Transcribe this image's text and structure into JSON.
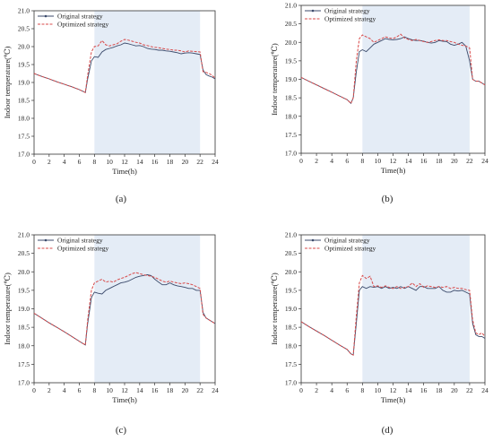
{
  "chart_data": [
    {
      "type": "line",
      "panel_label": "(a)",
      "xlabel": "Time(h)",
      "ylabel": "Indoor temperature(℃)",
      "xlim": [
        0,
        24
      ],
      "ylim": [
        17.0,
        21.0
      ],
      "x_ticks": [
        "0",
        "2",
        "4",
        "6",
        "8",
        "10",
        "12",
        "14",
        "16",
        "18",
        "20",
        "22",
        "24"
      ],
      "y_ticks": [
        "17.0",
        "17.5",
        "18.0",
        "18.5",
        "19.0",
        "19.5",
        "20.0",
        "20.5",
        "21.0"
      ],
      "shaded_region": [
        8,
        22
      ],
      "legend_position": "top-left",
      "series": [
        {
          "name": "Original strategy",
          "color": "#3b4a6b",
          "x": [
            0,
            1,
            2,
            3,
            4,
            5,
            6,
            6.8,
            7.1,
            7.6,
            8.0,
            8.5,
            9,
            9.5,
            10,
            10.5,
            11,
            11.5,
            12,
            12.5,
            13,
            13.5,
            14,
            14.5,
            15,
            15.5,
            16,
            16.5,
            17,
            17.5,
            18,
            18.5,
            19,
            19.5,
            20,
            20.5,
            21,
            21.5,
            22,
            22.4,
            22.8,
            23.2,
            23.6,
            24
          ],
          "y": [
            19.25,
            19.17,
            19.1,
            19.02,
            18.95,
            18.88,
            18.8,
            18.72,
            19.1,
            19.6,
            19.72,
            19.7,
            19.85,
            19.92,
            19.95,
            19.98,
            20.02,
            20.05,
            20.1,
            20.08,
            20.05,
            20.02,
            20.03,
            20.0,
            19.95,
            19.93,
            19.92,
            19.9,
            19.9,
            19.88,
            19.87,
            19.85,
            19.83,
            19.8,
            19.82,
            19.83,
            19.82,
            19.8,
            19.78,
            19.35,
            19.22,
            19.18,
            19.15,
            19.1
          ]
        },
        {
          "name": "Optimized strategy",
          "color": "#d84a4a",
          "x": [
            0,
            1,
            2,
            3,
            4,
            5,
            6,
            6.8,
            7.1,
            7.6,
            8.0,
            8.5,
            9,
            9.5,
            10,
            10.5,
            11,
            11.5,
            12,
            12.5,
            13,
            13.5,
            14,
            14.5,
            15,
            15.5,
            16,
            16.5,
            17,
            17.5,
            18,
            18.5,
            19,
            19.5,
            20,
            20.5,
            21,
            21.5,
            22,
            22.4,
            22.8,
            23.2,
            23.6,
            24
          ],
          "y": [
            19.25,
            19.17,
            19.1,
            19.02,
            18.95,
            18.88,
            18.8,
            18.72,
            19.2,
            19.85,
            20.0,
            20.02,
            20.17,
            20.05,
            20.02,
            20.05,
            20.08,
            20.15,
            20.2,
            20.18,
            20.15,
            20.12,
            20.1,
            20.05,
            20.03,
            20.0,
            19.98,
            19.97,
            19.95,
            19.93,
            19.92,
            19.9,
            19.9,
            19.88,
            19.85,
            19.88,
            19.87,
            19.86,
            19.85,
            19.3,
            19.28,
            19.25,
            19.2,
            19.12
          ]
        }
      ]
    },
    {
      "type": "line",
      "panel_label": "(b)",
      "xlabel": "Time(h)",
      "ylabel": "Indoor temperature(℃)",
      "xlim": [
        0,
        24
      ],
      "ylim": [
        17.0,
        21.0
      ],
      "x_ticks": [
        "0",
        "2",
        "4",
        "6",
        "8",
        "10",
        "12",
        "14",
        "16",
        "18",
        "20",
        "22",
        "24"
      ],
      "y_ticks": [
        "17.0",
        "17.5",
        "18.0",
        "18.5",
        "19.0",
        "19.5",
        "20.0",
        "20.5",
        "21.0"
      ],
      "shaded_region": [
        8,
        22
      ],
      "legend_position": "top-left",
      "series": [
        {
          "name": "Original strategy",
          "color": "#3b4a6b",
          "x": [
            0,
            1,
            2,
            3,
            4,
            5,
            6,
            6.5,
            6.8,
            7.2,
            7.6,
            8.0,
            8.5,
            9,
            9.5,
            10,
            10.5,
            11,
            11.5,
            12,
            12.5,
            13,
            13.5,
            14,
            14.5,
            15,
            15.5,
            16,
            16.5,
            17,
            17.5,
            18,
            18.5,
            19,
            19.5,
            20,
            20.5,
            21,
            21.5,
            22,
            22.4,
            22.8,
            23.2,
            23.6,
            24
          ],
          "y": [
            19.05,
            18.95,
            18.85,
            18.75,
            18.65,
            18.55,
            18.45,
            18.35,
            18.5,
            19.2,
            19.75,
            19.8,
            19.75,
            19.85,
            19.95,
            20.0,
            20.05,
            20.1,
            20.08,
            20.07,
            20.08,
            20.1,
            20.15,
            20.1,
            20.07,
            20.05,
            20.05,
            20.03,
            20.0,
            19.98,
            20.0,
            20.05,
            20.03,
            20.02,
            19.95,
            19.92,
            19.95,
            20.0,
            19.9,
            19.5,
            19.0,
            18.95,
            18.95,
            18.9,
            18.85
          ]
        },
        {
          "name": "Optimized strategy",
          "color": "#d84a4a",
          "x": [
            0,
            1,
            2,
            3,
            4,
            5,
            6,
            6.5,
            6.8,
            7.2,
            7.6,
            8.0,
            8.5,
            9,
            9.5,
            10,
            10.5,
            11,
            11.5,
            12,
            12.5,
            13,
            13.5,
            14,
            14.5,
            15,
            15.5,
            16,
            16.5,
            17,
            17.5,
            18,
            18.5,
            19,
            19.5,
            20,
            20.5,
            21,
            21.5,
            22,
            22.4,
            22.8,
            23.2,
            23.6,
            24
          ],
          "y": [
            19.05,
            18.95,
            18.85,
            18.75,
            18.65,
            18.55,
            18.45,
            18.35,
            18.5,
            19.5,
            20.1,
            20.2,
            20.15,
            20.1,
            20.0,
            20.05,
            20.1,
            20.15,
            20.12,
            20.1,
            20.15,
            20.22,
            20.12,
            20.08,
            20.05,
            20.08,
            20.05,
            20.02,
            20.0,
            20.02,
            20.05,
            20.07,
            20.05,
            20.05,
            20.02,
            20.0,
            19.95,
            19.92,
            19.9,
            19.85,
            19.0,
            18.95,
            18.95,
            18.9,
            18.85
          ]
        }
      ]
    },
    {
      "type": "line",
      "panel_label": "(c)",
      "xlabel": "Time(h)",
      "ylabel": "Indoor temperature(℃)",
      "xlim": [
        0,
        24
      ],
      "ylim": [
        17.0,
        21.0
      ],
      "x_ticks": [
        "0",
        "2",
        "4",
        "6",
        "8",
        "10",
        "12",
        "14",
        "16",
        "18",
        "20",
        "22",
        "24"
      ],
      "y_ticks": [
        "17.0",
        "17.5",
        "18.0",
        "18.5",
        "19.0",
        "19.5",
        "20.0",
        "20.5",
        "21.0"
      ],
      "shaded_region": [
        8,
        22
      ],
      "legend_position": "top-left",
      "series": [
        {
          "name": "Original strategy",
          "color": "#3b4a6b",
          "x": [
            0,
            1,
            2,
            3,
            4,
            5,
            6,
            6.8,
            7.1,
            7.6,
            8.0,
            8.5,
            9,
            9.5,
            10,
            10.5,
            11,
            11.5,
            12,
            12.5,
            13,
            13.5,
            14,
            14.5,
            15,
            15.5,
            16,
            16.5,
            17,
            17.5,
            18,
            18.5,
            19,
            19.5,
            20,
            20.5,
            21,
            21.5,
            22,
            22.4,
            22.8,
            23.2,
            23.6,
            24
          ],
          "y": [
            18.88,
            18.75,
            18.62,
            18.5,
            18.38,
            18.25,
            18.12,
            18.02,
            18.6,
            19.3,
            19.45,
            19.42,
            19.4,
            19.5,
            19.55,
            19.6,
            19.65,
            19.7,
            19.72,
            19.75,
            19.8,
            19.85,
            19.88,
            19.9,
            19.92,
            19.9,
            19.8,
            19.72,
            19.65,
            19.65,
            19.7,
            19.65,
            19.62,
            19.6,
            19.58,
            19.55,
            19.55,
            19.5,
            19.5,
            18.9,
            18.75,
            18.7,
            18.65,
            18.6
          ]
        },
        {
          "name": "Optimized strategy",
          "color": "#d84a4a",
          "x": [
            0,
            1,
            2,
            3,
            4,
            5,
            6,
            6.8,
            7.1,
            7.6,
            8.0,
            8.5,
            9,
            9.5,
            10,
            10.5,
            11,
            11.5,
            12,
            12.5,
            13,
            13.5,
            14,
            14.5,
            15,
            15.5,
            16,
            16.5,
            17,
            17.5,
            18,
            18.5,
            19,
            19.5,
            20,
            20.5,
            21,
            21.5,
            22,
            22.4,
            22.8,
            23.2,
            23.6,
            24
          ],
          "y": [
            18.88,
            18.75,
            18.62,
            18.5,
            18.38,
            18.25,
            18.12,
            18.02,
            18.7,
            19.5,
            19.7,
            19.75,
            19.8,
            19.72,
            19.75,
            19.72,
            19.78,
            19.82,
            19.85,
            19.9,
            19.95,
            19.98,
            19.95,
            19.92,
            19.9,
            19.88,
            19.85,
            19.8,
            19.75,
            19.72,
            19.75,
            19.72,
            19.7,
            19.68,
            19.7,
            19.68,
            19.65,
            19.6,
            19.55,
            18.85,
            18.75,
            18.7,
            18.65,
            18.6
          ]
        }
      ]
    },
    {
      "type": "line",
      "panel_label": "(d)",
      "xlabel": "Time(h)",
      "ylabel": "Indoor temperature(℃)",
      "xlim": [
        0,
        24
      ],
      "ylim": [
        17.0,
        21.0
      ],
      "x_ticks": [
        "0",
        "2",
        "4",
        "6",
        "8",
        "10",
        "12",
        "14",
        "16",
        "18",
        "20",
        "22",
        "24"
      ],
      "y_ticks": [
        "17.0",
        "17.5",
        "18.0",
        "18.5",
        "19.0",
        "19.5",
        "20.0",
        "20.5",
        "21.0"
      ],
      "shaded_region": [
        8,
        22
      ],
      "legend_position": "top-left",
      "series": [
        {
          "name": "Original strategy",
          "color": "#3b4a6b",
          "x": [
            0,
            1,
            2,
            3,
            4,
            5,
            6,
            6.5,
            6.8,
            7.2,
            7.6,
            8.0,
            8.5,
            9,
            9.5,
            10,
            10.5,
            11,
            11.5,
            12,
            12.5,
            13,
            13.5,
            14,
            14.5,
            15,
            15.5,
            16,
            16.5,
            17,
            17.5,
            18,
            18.5,
            19,
            19.5,
            20,
            20.5,
            21,
            21.5,
            22,
            22.4,
            22.8,
            23.2,
            23.6,
            24
          ],
          "y": [
            18.65,
            18.52,
            18.4,
            18.28,
            18.15,
            18.02,
            17.9,
            17.78,
            17.75,
            18.6,
            19.5,
            19.6,
            19.55,
            19.6,
            19.58,
            19.6,
            19.55,
            19.6,
            19.55,
            19.58,
            19.55,
            19.6,
            19.55,
            19.6,
            19.55,
            19.5,
            19.6,
            19.6,
            19.55,
            19.55,
            19.55,
            19.6,
            19.5,
            19.45,
            19.45,
            19.5,
            19.48,
            19.5,
            19.45,
            19.4,
            18.6,
            18.3,
            18.25,
            18.25,
            18.2
          ]
        },
        {
          "name": "Optimized strategy",
          "color": "#d84a4a",
          "x": [
            0,
            1,
            2,
            3,
            4,
            5,
            6,
            6.5,
            6.8,
            7.2,
            7.6,
            8.0,
            8.5,
            9,
            9.5,
            10,
            10.5,
            11,
            11.5,
            12,
            12.5,
            13,
            13.5,
            14,
            14.5,
            15,
            15.5,
            16,
            16.5,
            17,
            17.5,
            18,
            18.5,
            19,
            19.5,
            20,
            20.5,
            21,
            21.5,
            22,
            22.4,
            22.8,
            23.2,
            23.6,
            24
          ],
          "y": [
            18.65,
            18.52,
            18.4,
            18.28,
            18.15,
            18.02,
            17.9,
            17.78,
            17.75,
            18.8,
            19.7,
            19.9,
            19.82,
            19.88,
            19.6,
            19.62,
            19.58,
            19.62,
            19.58,
            19.55,
            19.6,
            19.55,
            19.58,
            19.6,
            19.7,
            19.6,
            19.68,
            19.58,
            19.62,
            19.6,
            19.58,
            19.6,
            19.58,
            19.6,
            19.55,
            19.58,
            19.55,
            19.55,
            19.52,
            19.5,
            18.7,
            18.35,
            18.3,
            18.35,
            18.25
          ]
        }
      ]
    }
  ]
}
